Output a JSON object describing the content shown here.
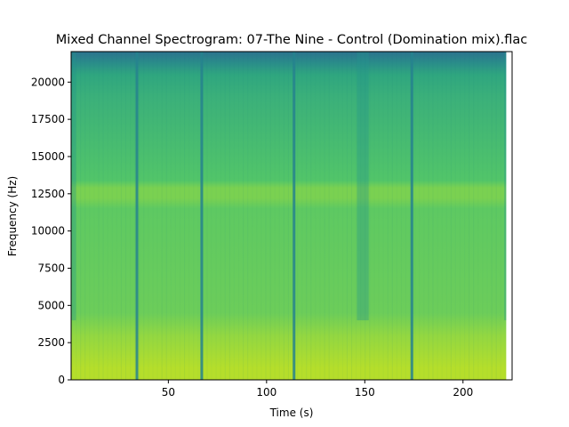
{
  "chart_data": {
    "type": "heatmap",
    "title": "Mixed Channel Spectrogram: 07-The Nine - Control (Domination mix).flac",
    "xlabel": "Time (s)",
    "ylabel": "Frequency (Hz)",
    "xlim": [
      0.5,
      225
    ],
    "ylim": [
      0,
      22050
    ],
    "data_end_time": 222,
    "xticks": [
      50,
      100,
      150,
      200
    ],
    "xtick_labels": [
      "50",
      "100",
      "150",
      "200"
    ],
    "yticks": [
      0,
      2500,
      5000,
      7500,
      10000,
      12500,
      15000,
      17500,
      20000
    ],
    "ytick_labels": [
      "0",
      "2500",
      "5000",
      "7500",
      "10000",
      "12500",
      "15000",
      "17500",
      "20000"
    ],
    "grid": false,
    "colormap": "viridis",
    "colors": {
      "low_freq_energy": "#b5de2b",
      "mid_freq_energy": "#6ccd5a",
      "high_freq_energy": "#3bb07a",
      "top_band": "#2a8c8a",
      "transition_dark": "#26828e"
    },
    "section_boundaries_s": [
      34,
      67,
      114,
      174
    ],
    "quiet_intervals_s": [
      [
        0.5,
        3
      ],
      [
        146,
        152
      ],
      [
        221,
        222
      ]
    ],
    "energy_bands": [
      {
        "freq_range_hz": [
          0,
          800
        ],
        "level": 0.95
      },
      {
        "freq_range_hz": [
          800,
          4000
        ],
        "level": 0.8
      },
      {
        "freq_range_hz": [
          4000,
          12000
        ],
        "level": 0.72
      },
      {
        "freq_range_hz": [
          12000,
          13000
        ],
        "level": 0.78
      },
      {
        "freq_range_hz": [
          13000,
          19500
        ],
        "level": 0.66
      },
      {
        "freq_range_hz": [
          19500,
          21000
        ],
        "level": 0.55
      },
      {
        "freq_range_hz": [
          21000,
          22050
        ],
        "level": 0.42
      }
    ]
  }
}
